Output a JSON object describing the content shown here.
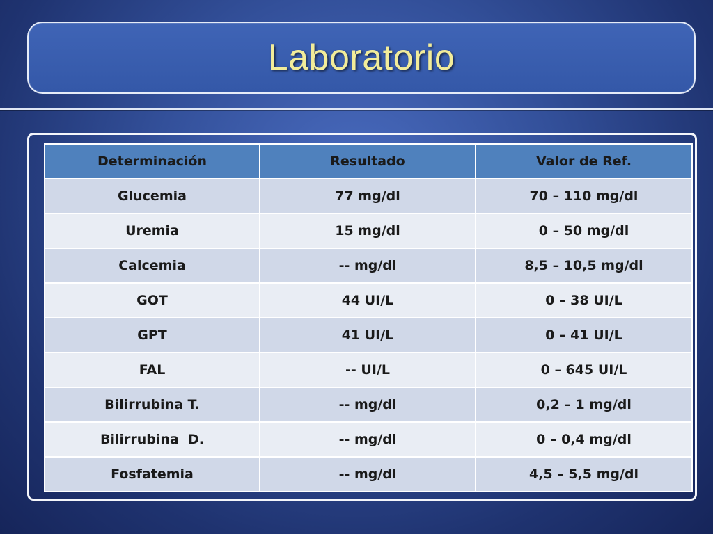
{
  "slide": {
    "title": "Laboratorio"
  },
  "table": {
    "headers": [
      "Determinación",
      "Resultado",
      "Valor de Ref."
    ],
    "rows": [
      [
        "Glucemia",
        "77 mg/dl",
        "70 – 110 mg/dl"
      ],
      [
        "Uremia",
        "15 mg/dl",
        "0 – 50 mg/dl"
      ],
      [
        "Calcemia",
        "-- mg/dl",
        "8,5 – 10,5 mg/dl"
      ],
      [
        "GOT",
        "44 UI/L",
        "0 – 38 UI/L"
      ],
      [
        "GPT",
        "41 UI/L",
        "0 – 41 UI/L"
      ],
      [
        "FAL",
        "-- UI/L",
        "0 – 645 UI/L"
      ],
      [
        "Bilirrubina T.",
        "-- mg/dl",
        "0,2 – 1 mg/dl"
      ],
      [
        "Bilirrubina  D.",
        "-- mg/dl",
        "0 – 0,4 mg/dl"
      ],
      [
        "Fosfatemia",
        "-- mg/dl",
        "4,5 – 5,5 mg/dl"
      ]
    ]
  },
  "colors": {
    "title_text": "#f2ec9a",
    "header_bg": "#4f81bd",
    "row_odd_bg": "#d0d8e8",
    "row_even_bg": "#e9edf4",
    "background": "#33509a"
  }
}
